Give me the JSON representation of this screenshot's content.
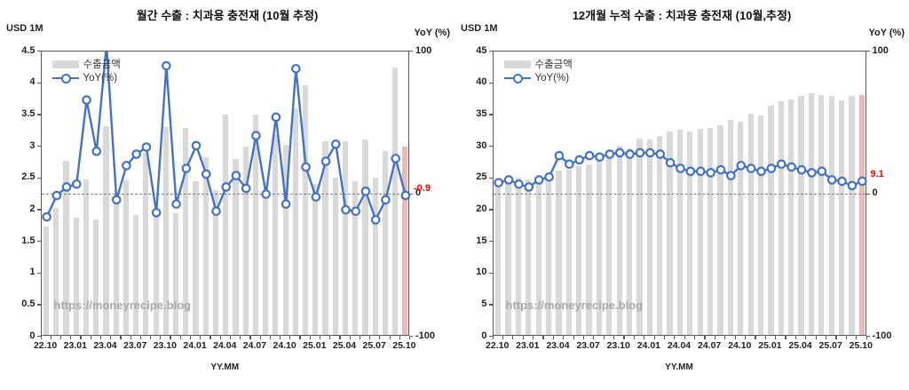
{
  "page_background": "#ffffff",
  "chart_data": [
    {
      "type": "bar+line",
      "title": "월간 수출 : 치과용 충전재 (10월 추정)",
      "unit_left": "USD 1M",
      "unit_right": "YoY (%)",
      "xlabel": "YY.MM",
      "watermark": "https://moneyrecipe.blog",
      "legend": {
        "bar": "수출금액",
        "line": "YoY(%)"
      },
      "x": [
        "22.10",
        "22.11",
        "22.12",
        "23.01",
        "23.02",
        "23.03",
        "23.04",
        "23.05",
        "23.06",
        "23.07",
        "23.08",
        "23.09",
        "23.10",
        "23.11",
        "23.12",
        "24.01",
        "24.02",
        "24.03",
        "24.04",
        "24.05",
        "24.06",
        "24.07",
        "24.08",
        "24.09",
        "24.10",
        "24.11",
        "24.12",
        "25.01",
        "25.02",
        "25.03",
        "25.04",
        "25.05",
        "25.06",
        "25.07",
        "25.08",
        "25.09",
        "25.10"
      ],
      "x_tick_labels": [
        "22.10",
        "23.01",
        "23.04",
        "23.07",
        "23.10",
        "24.01",
        "24.04",
        "24.07",
        "24.10",
        "25.01",
        "25.04",
        "25.07",
        "25.10"
      ],
      "series": [
        {
          "name": "수출금액",
          "type": "bar",
          "axis": "left",
          "values": [
            1.72,
            2.02,
            2.77,
            1.87,
            2.47,
            1.84,
            3.32,
            2.2,
            2.46,
            1.91,
            2.9,
            1.92,
            3.31,
            1.93,
            3.3,
            2.45,
            2.82,
            2.31,
            3.5,
            2.8,
            2.99,
            3.5,
            2.25,
            3.19,
            3.03,
            3.6,
            3.97,
            2.4,
            3.08,
            2.5,
            3.08,
            2.45,
            3.11,
            2.5,
            2.92,
            4.25,
            3.0
          ]
        },
        {
          "name": "YoY(%)",
          "type": "line",
          "axis": "right",
          "values": [
            -16,
            -1,
            5,
            7,
            66,
            30,
            105,
            -4,
            20,
            28,
            33,
            -13,
            90,
            -7,
            18,
            34,
            14,
            -12,
            5,
            13,
            4,
            41,
            0,
            54,
            -7,
            88,
            19,
            -2,
            23,
            35,
            -11,
            -12,
            2,
            -18,
            -4,
            25,
            -0.9
          ]
        }
      ],
      "ylim": [
        0,
        4.5
      ],
      "y_ticks": [
        "0",
        "0.5",
        "1",
        "1.5",
        "2",
        "2.5",
        "3",
        "3.5",
        "4",
        "4.5"
      ],
      "y2lim": [
        -100,
        100
      ],
      "y2_ticks": [
        "100",
        "0",
        "-100"
      ],
      "zero_line_dashed": true,
      "grid": false,
      "legend_position": "top-left-inside",
      "highlight_last_bar": true,
      "end_label": {
        "text": "-0.9",
        "value": -0.9
      },
      "colors": {
        "bar": "#d9d9d9",
        "bar_highlight": "#ecb9bb",
        "line": "#4472c4",
        "end_label": "#ff0000",
        "axis": "#595959"
      }
    },
    {
      "type": "bar+line",
      "title": "12개월 누적 수출 : 치과용 충전재 (10월,추정)",
      "unit_left": "USD 1M",
      "unit_right": "YoY (%)",
      "xlabel": "YY.MM",
      "watermark": "https://moneyrecipe.blog",
      "legend": {
        "bar": "수출금액",
        "line": "YoY(%)"
      },
      "x": [
        "22.10",
        "22.11",
        "22.12",
        "23.01",
        "23.02",
        "23.03",
        "23.04",
        "23.05",
        "23.06",
        "23.07",
        "23.08",
        "23.09",
        "23.10",
        "23.11",
        "23.12",
        "24.01",
        "24.02",
        "24.03",
        "24.04",
        "24.05",
        "24.06",
        "24.07",
        "24.08",
        "24.09",
        "24.10",
        "24.11",
        "24.12",
        "25.01",
        "25.02",
        "25.03",
        "25.04",
        "25.05",
        "25.06",
        "25.07",
        "25.08",
        "25.09",
        "25.10"
      ],
      "x_tick_labels": [
        "22.10",
        "23.01",
        "23.04",
        "23.07",
        "23.10",
        "24.01",
        "24.04",
        "24.07",
        "24.10",
        "25.01",
        "25.04",
        "25.07",
        "25.10"
      ],
      "series": [
        {
          "name": "수출금액",
          "type": "bar",
          "axis": "left",
          "values": [
            24.5,
            24.7,
            25.0,
            24.8,
            25.1,
            25.2,
            26.1,
            26.3,
            26.8,
            27.2,
            27.8,
            28.3,
            30.1,
            29.7,
            31.3,
            31.1,
            31.7,
            32.4,
            32.7,
            32.3,
            32.8,
            33.0,
            33.4,
            34.2,
            33.9,
            35.2,
            34.9,
            36.5,
            37.2,
            37.4,
            38.0,
            38.5,
            38.2,
            38.0,
            37.3,
            38.0,
            38.2
          ]
        },
        {
          "name": "YoY(%)",
          "type": "line",
          "axis": "right",
          "values": [
            8,
            10,
            7,
            5,
            10,
            12,
            27,
            21,
            24,
            27,
            26,
            28,
            29,
            28,
            29,
            29,
            28,
            22,
            18,
            16,
            16,
            15,
            17,
            13,
            20,
            18,
            16,
            18,
            21,
            19,
            17,
            15,
            16,
            10,
            9,
            6,
            9.1
          ]
        }
      ],
      "ylim": [
        0,
        45
      ],
      "y_ticks": [
        "0",
        "5",
        "10",
        "15",
        "20",
        "25",
        "30",
        "35",
        "40",
        "45"
      ],
      "y2lim": [
        -100,
        100
      ],
      "y2_ticks": [
        "100",
        "0",
        "-100"
      ],
      "zero_line_dashed": true,
      "grid": false,
      "legend_position": "top-left-inside",
      "highlight_last_bar": true,
      "end_label": {
        "text": "9.1",
        "value": 9.1
      },
      "colors": {
        "bar": "#d9d9d9",
        "bar_highlight": "#ecb9bb",
        "line": "#4472c4",
        "end_label": "#ff0000",
        "axis": "#595959"
      }
    }
  ]
}
